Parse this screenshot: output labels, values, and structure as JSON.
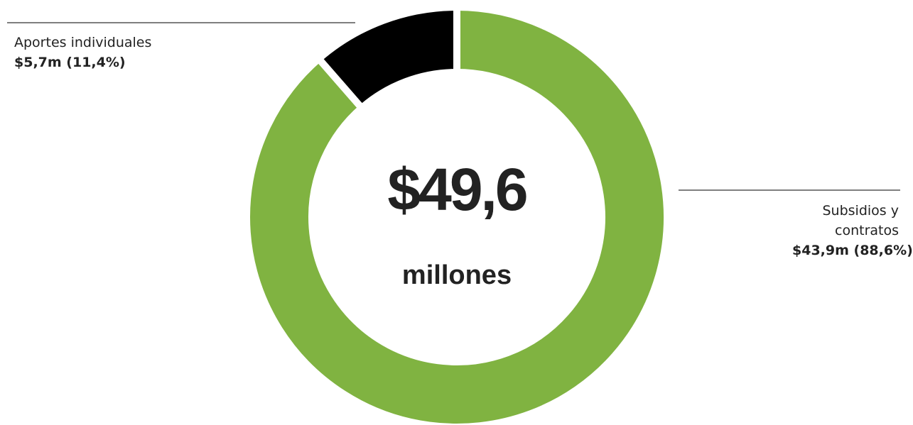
{
  "chart_data": {
    "type": "donut",
    "categories": [
      "Subsidios y contratos",
      "Aportes individuales"
    ],
    "values": [
      88.6,
      11.4
    ],
    "value_labels": [
      "$43,9m (88,6%)",
      "$5,7m (11,4%)"
    ],
    "colors": [
      "#80b341",
      "#000000"
    ],
    "center_label": "$49,6",
    "center_sublabel": "millones"
  }
}
